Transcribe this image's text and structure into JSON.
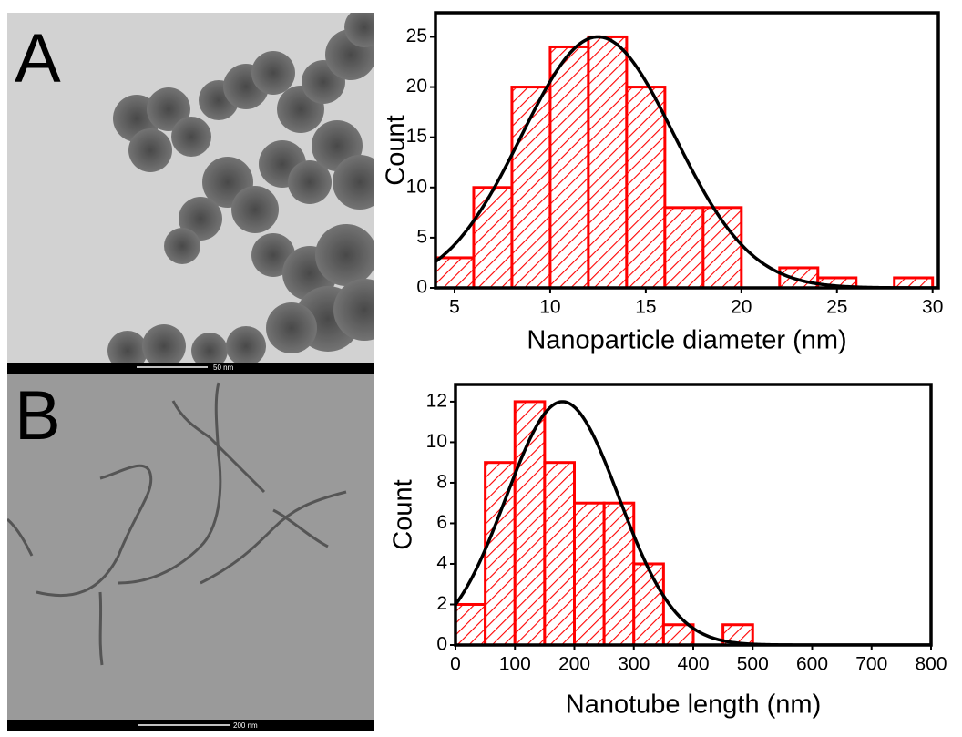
{
  "images": [
    {
      "label": "A",
      "scale_bar": "50 nm"
    },
    {
      "label": "B",
      "scale_bar": "200 nm"
    }
  ],
  "chart_data": [
    {
      "type": "histogram",
      "xlabel": "Nanoparticle diameter (nm)",
      "ylabel": "Count",
      "color": "#ff0000",
      "bins": [
        4,
        6,
        8,
        10,
        12,
        14,
        16,
        18,
        20,
        22,
        24,
        26,
        28,
        30
      ],
      "values": [
        3,
        10,
        20,
        24,
        25,
        20,
        8,
        8,
        0,
        2,
        1,
        0,
        1
      ],
      "fit": {
        "amplitude": 25,
        "mean": 12.5,
        "sigma": 4,
        "color": "#000000"
      },
      "xlim": [
        4,
        30.3
      ],
      "ylim": [
        0,
        27.4
      ],
      "xticks": [
        5,
        10,
        15,
        20,
        25,
        30
      ],
      "yticks": [
        0,
        5,
        10,
        15,
        20,
        25
      ]
    },
    {
      "type": "histogram",
      "xlabel": "Nanotube length (nm)",
      "ylabel": "Count",
      "color": "#ff0000",
      "bins": [
        0,
        50,
        100,
        150,
        200,
        250,
        300,
        350,
        400,
        450,
        500
      ],
      "values": [
        2,
        9,
        12,
        9,
        7,
        7,
        4,
        1,
        0,
        1
      ],
      "fit": {
        "amplitude": 12,
        "mean": 180,
        "sigma": 95,
        "color": "#000000"
      },
      "xlim": [
        0,
        800
      ],
      "ylim": [
        0,
        12.85
      ],
      "xticks": [
        0,
        100,
        200,
        300,
        400,
        500,
        600,
        700,
        800
      ],
      "yticks": [
        0,
        2,
        4,
        6,
        8,
        10,
        12
      ]
    }
  ]
}
